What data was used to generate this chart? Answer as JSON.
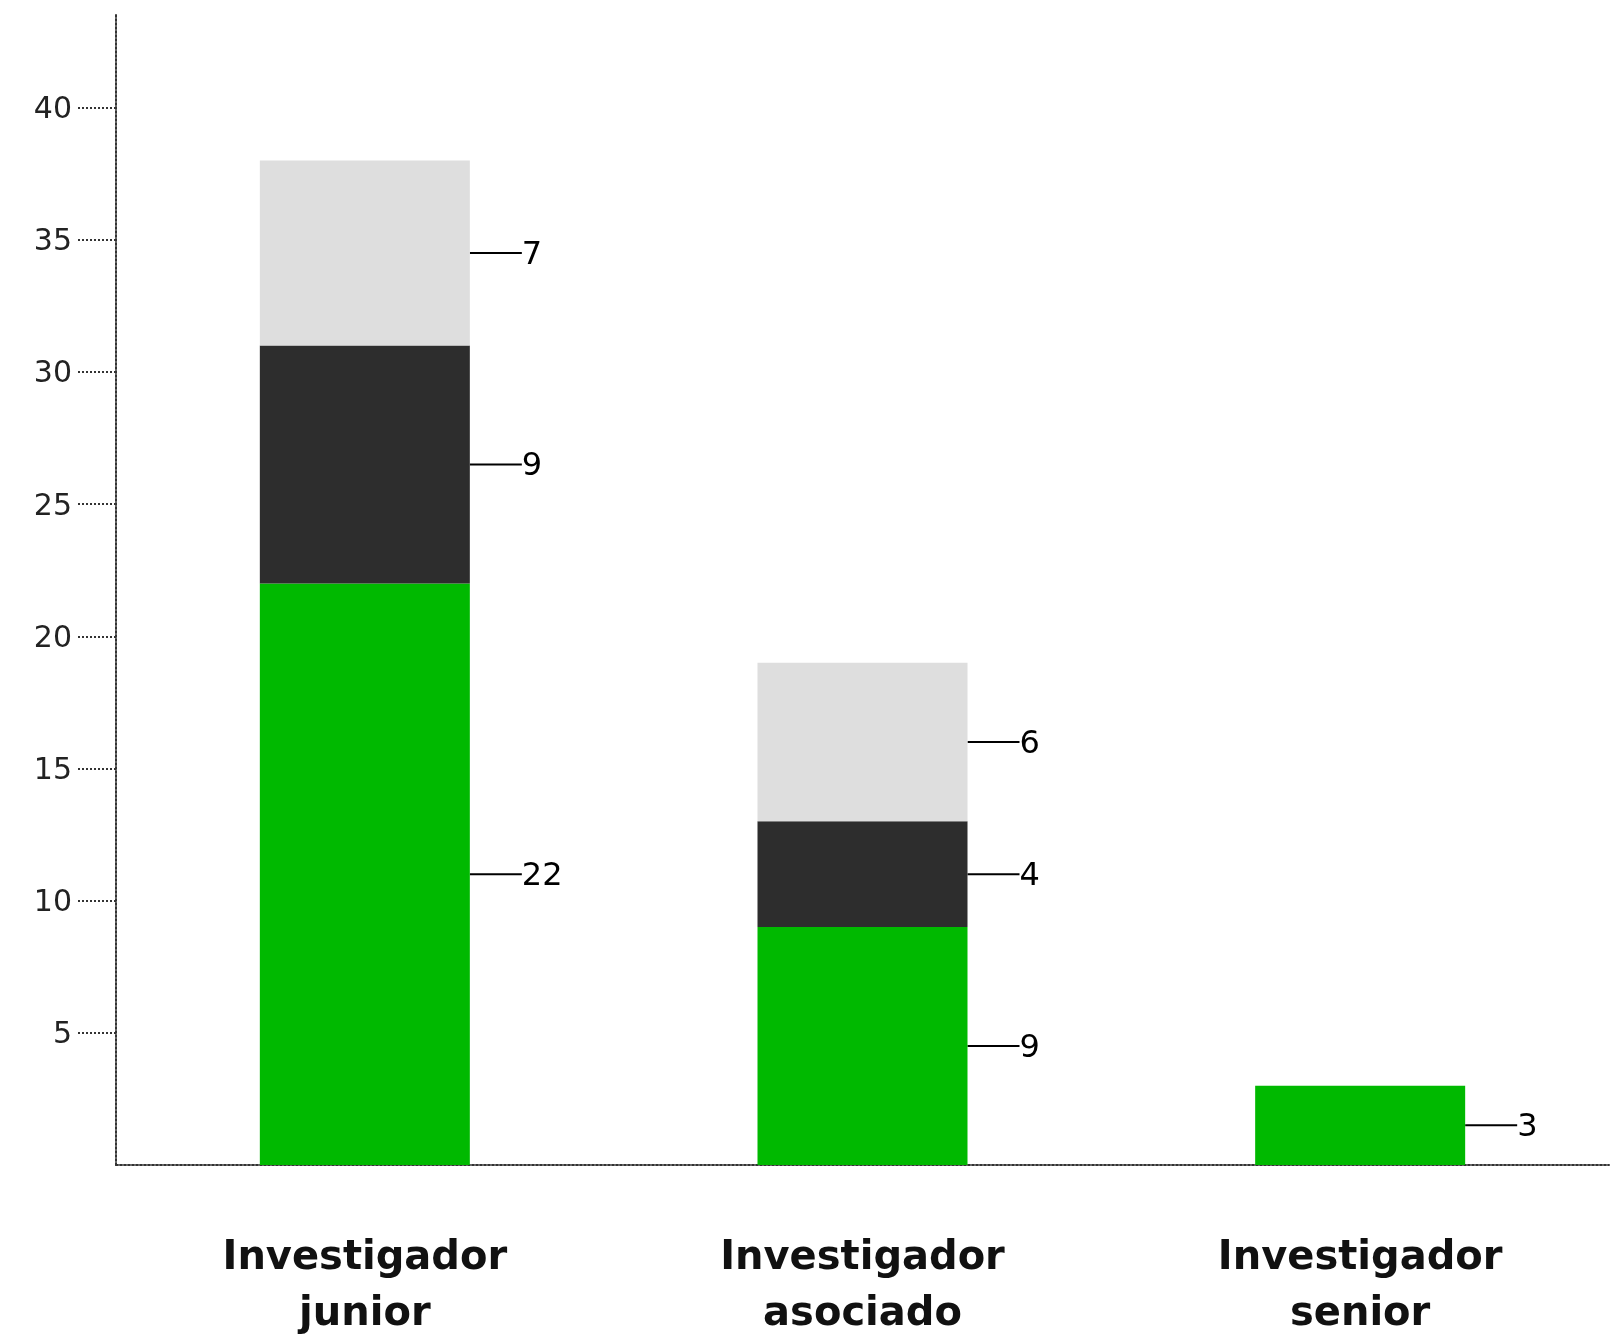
{
  "chart_data": {
    "type": "bar",
    "stacked": true,
    "categories": [
      "Investigador\njunior",
      "Investigador\nasociado",
      "Investigador\nsenior"
    ],
    "series": [
      {
        "color": "#00b900",
        "values": [
          22,
          9,
          3
        ]
      },
      {
        "color": "#2d2d2d",
        "values": [
          9,
          4,
          null
        ]
      },
      {
        "color": "#dedede",
        "values": [
          7,
          6,
          null
        ]
      }
    ],
    "ylim": [
      0,
      43.5
    ],
    "yticks": [
      5,
      10,
      15,
      20,
      25,
      30,
      35,
      40
    ],
    "grid": false,
    "data_labels": true
  }
}
